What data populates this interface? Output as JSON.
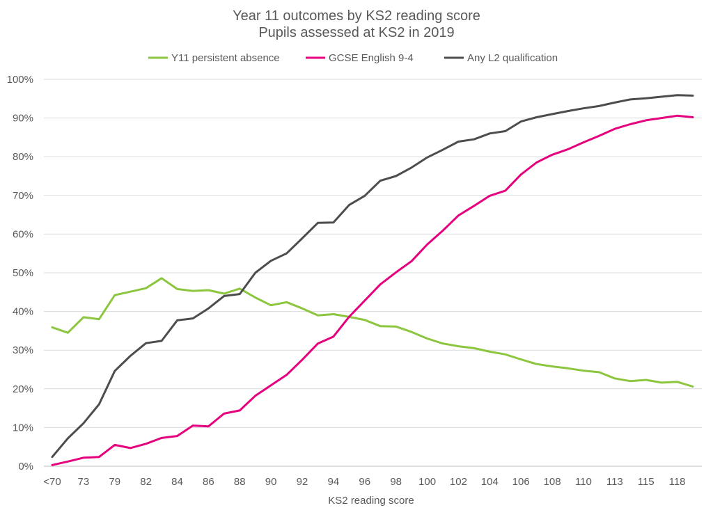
{
  "chart_data": {
    "type": "line",
    "title_line1": "Year 11 outcomes by KS2 reading score",
    "title_line2": "Pupils assessed at KS2 in 2019",
    "xlabel": "KS2 reading score",
    "ylabel": "",
    "ylim": [
      0,
      100
    ],
    "y_ticks": [
      "0%",
      "10%",
      "20%",
      "30%",
      "40%",
      "50%",
      "60%",
      "70%",
      "80%",
      "90%",
      "100%"
    ],
    "x_tick_labels": [
      "<70",
      "73",
      "79",
      "82",
      "84",
      "86",
      "88",
      "90",
      "92",
      "94",
      "96",
      "98",
      "100",
      "102",
      "104",
      "106",
      "108",
      "110",
      "113",
      "115",
      "118"
    ],
    "legend_position": "top",
    "series": [
      {
        "name": "Y11 persistent absence",
        "color": "#8cc63f",
        "values": [
          35.9,
          34.5,
          38.5,
          38.0,
          44.2,
          45.1,
          46.0,
          48.6,
          45.8,
          45.3,
          45.5,
          44.6,
          45.9,
          43.6,
          41.6,
          42.4,
          40.8,
          39.0,
          39.3,
          38.6,
          37.8,
          36.2,
          36.1,
          34.7,
          33.0,
          31.7,
          31.0,
          30.5,
          29.6,
          28.9,
          27.6,
          26.4,
          25.8,
          25.3,
          24.7,
          24.3,
          22.7,
          22.0,
          22.3,
          21.6,
          21.8,
          20.6
        ]
      },
      {
        "name": "GCSE English 9-4",
        "color": "#e5007e",
        "values": [
          0.3,
          1.2,
          2.2,
          2.4,
          5.5,
          4.7,
          5.8,
          7.3,
          7.8,
          10.5,
          10.3,
          13.6,
          14.4,
          18.2,
          20.9,
          23.6,
          27.5,
          31.7,
          33.5,
          38.6,
          42.8,
          47.0,
          50.1,
          53.0,
          57.3,
          60.9,
          64.8,
          67.3,
          69.9,
          71.2,
          75.4,
          78.5,
          80.5,
          81.9,
          83.7,
          85.4,
          87.2,
          88.4,
          89.4,
          90.0,
          90.6,
          90.2
        ]
      },
      {
        "name": "Any L2 qualification",
        "color": "#4d4d4d",
        "values": [
          2.4,
          7.2,
          11.1,
          16.0,
          24.6,
          28.5,
          31.8,
          32.4,
          37.7,
          38.2,
          40.8,
          44.0,
          44.5,
          50.0,
          53.1,
          55.0,
          58.9,
          62.9,
          63.0,
          67.5,
          69.9,
          73.8,
          75.0,
          77.2,
          79.8,
          81.8,
          83.9,
          84.5,
          86.0,
          86.6,
          89.1,
          90.2,
          91.0,
          91.8,
          92.5,
          93.1,
          94.0,
          94.8,
          95.1,
          95.5,
          95.9,
          95.8
        ]
      }
    ]
  }
}
